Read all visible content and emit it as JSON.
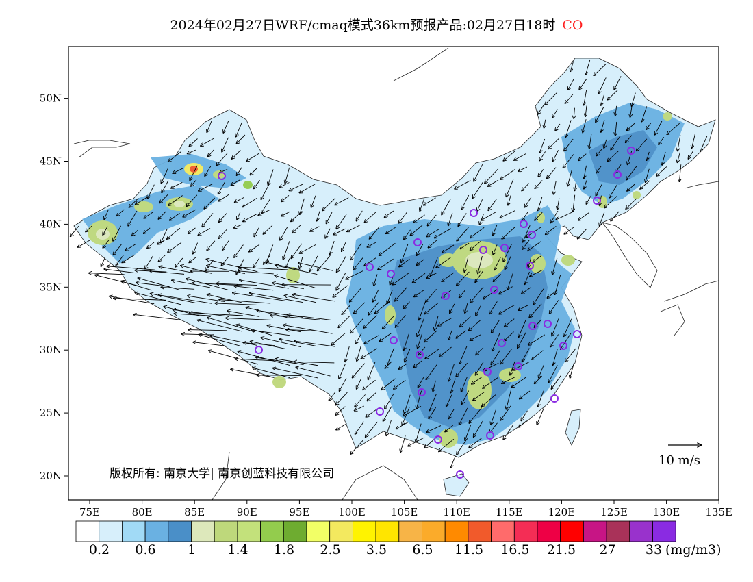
{
  "title": {
    "text": "2024年02月27日WRF/cmaq模式36km预报产品:02月27日18时",
    "species": "CO"
  },
  "map": {
    "lon_ticks": [
      "75E",
      "80E",
      "85E",
      "90E",
      "95E",
      "100E",
      "105E",
      "110E",
      "115E",
      "120E",
      "125E",
      "130E",
      "135E"
    ],
    "lat_ticks": [
      "20N",
      "25N",
      "30N",
      "35N",
      "40N",
      "45N",
      "50N"
    ],
    "copyright": "版权所有: 南京大学| 南京创蓝科技有限公司",
    "wind_scale_label": "10 m/s",
    "station_marker_color": "#8a2be2"
  },
  "colorbar": {
    "colors": [
      "#ffffff",
      "#d7effb",
      "#a1daf6",
      "#6ab1e2",
      "#4a8fc8",
      "#dde8bb",
      "#bed87b",
      "#c3e17b",
      "#93cc4d",
      "#6eac30",
      "#f2ff66",
      "#f3e95f",
      "#fff300",
      "#ffe500",
      "#f7b447",
      "#fbab2a",
      "#ff8a00",
      "#f15a2b",
      "#ff6b6b",
      "#f42d55",
      "#ee0045",
      "#ff0000",
      "#c71585",
      "#a93259",
      "#9932cc",
      "#8a2be2"
    ],
    "labels": [
      "0.2",
      "0.6",
      "1",
      "1.4",
      "1.8",
      "2.5",
      "3.5",
      "6.5",
      "11.5",
      "16.5",
      "21.5",
      "27",
      "33"
    ],
    "units": "(mg/m3)"
  }
}
